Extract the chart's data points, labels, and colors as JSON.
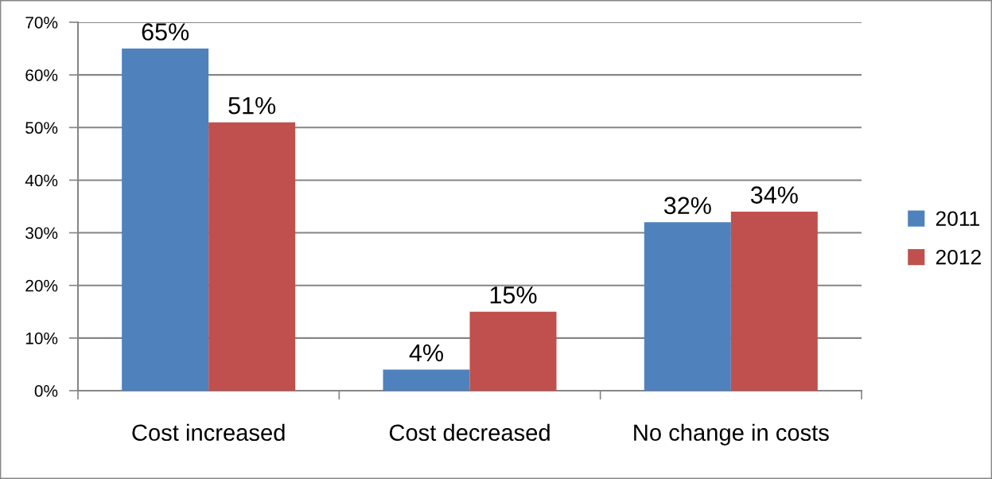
{
  "chart_data": {
    "type": "bar",
    "categories": [
      "Cost increased",
      "Cost decreased",
      "No change in costs"
    ],
    "series": [
      {
        "name": "2011",
        "color": "#4f81bd",
        "values": [
          65,
          4,
          32
        ],
        "value_labels": [
          "65%",
          "4%",
          "32%"
        ]
      },
      {
        "name": "2012",
        "color": "#c0504d",
        "values": [
          51,
          15,
          34
        ],
        "value_labels": [
          "51%",
          "15%",
          "34%"
        ]
      }
    ],
    "ylim": [
      0,
      70
    ],
    "yticks": [
      {
        "value": 0,
        "label": "0%"
      },
      {
        "value": 10,
        "label": "10%"
      },
      {
        "value": 20,
        "label": "20%"
      },
      {
        "value": 30,
        "label": "30%"
      },
      {
        "value": 40,
        "label": "40%"
      },
      {
        "value": 50,
        "label": "50%"
      },
      {
        "value": 60,
        "label": "60%"
      },
      {
        "value": 70,
        "label": "70%"
      }
    ],
    "grid": "y",
    "legend": "right"
  }
}
